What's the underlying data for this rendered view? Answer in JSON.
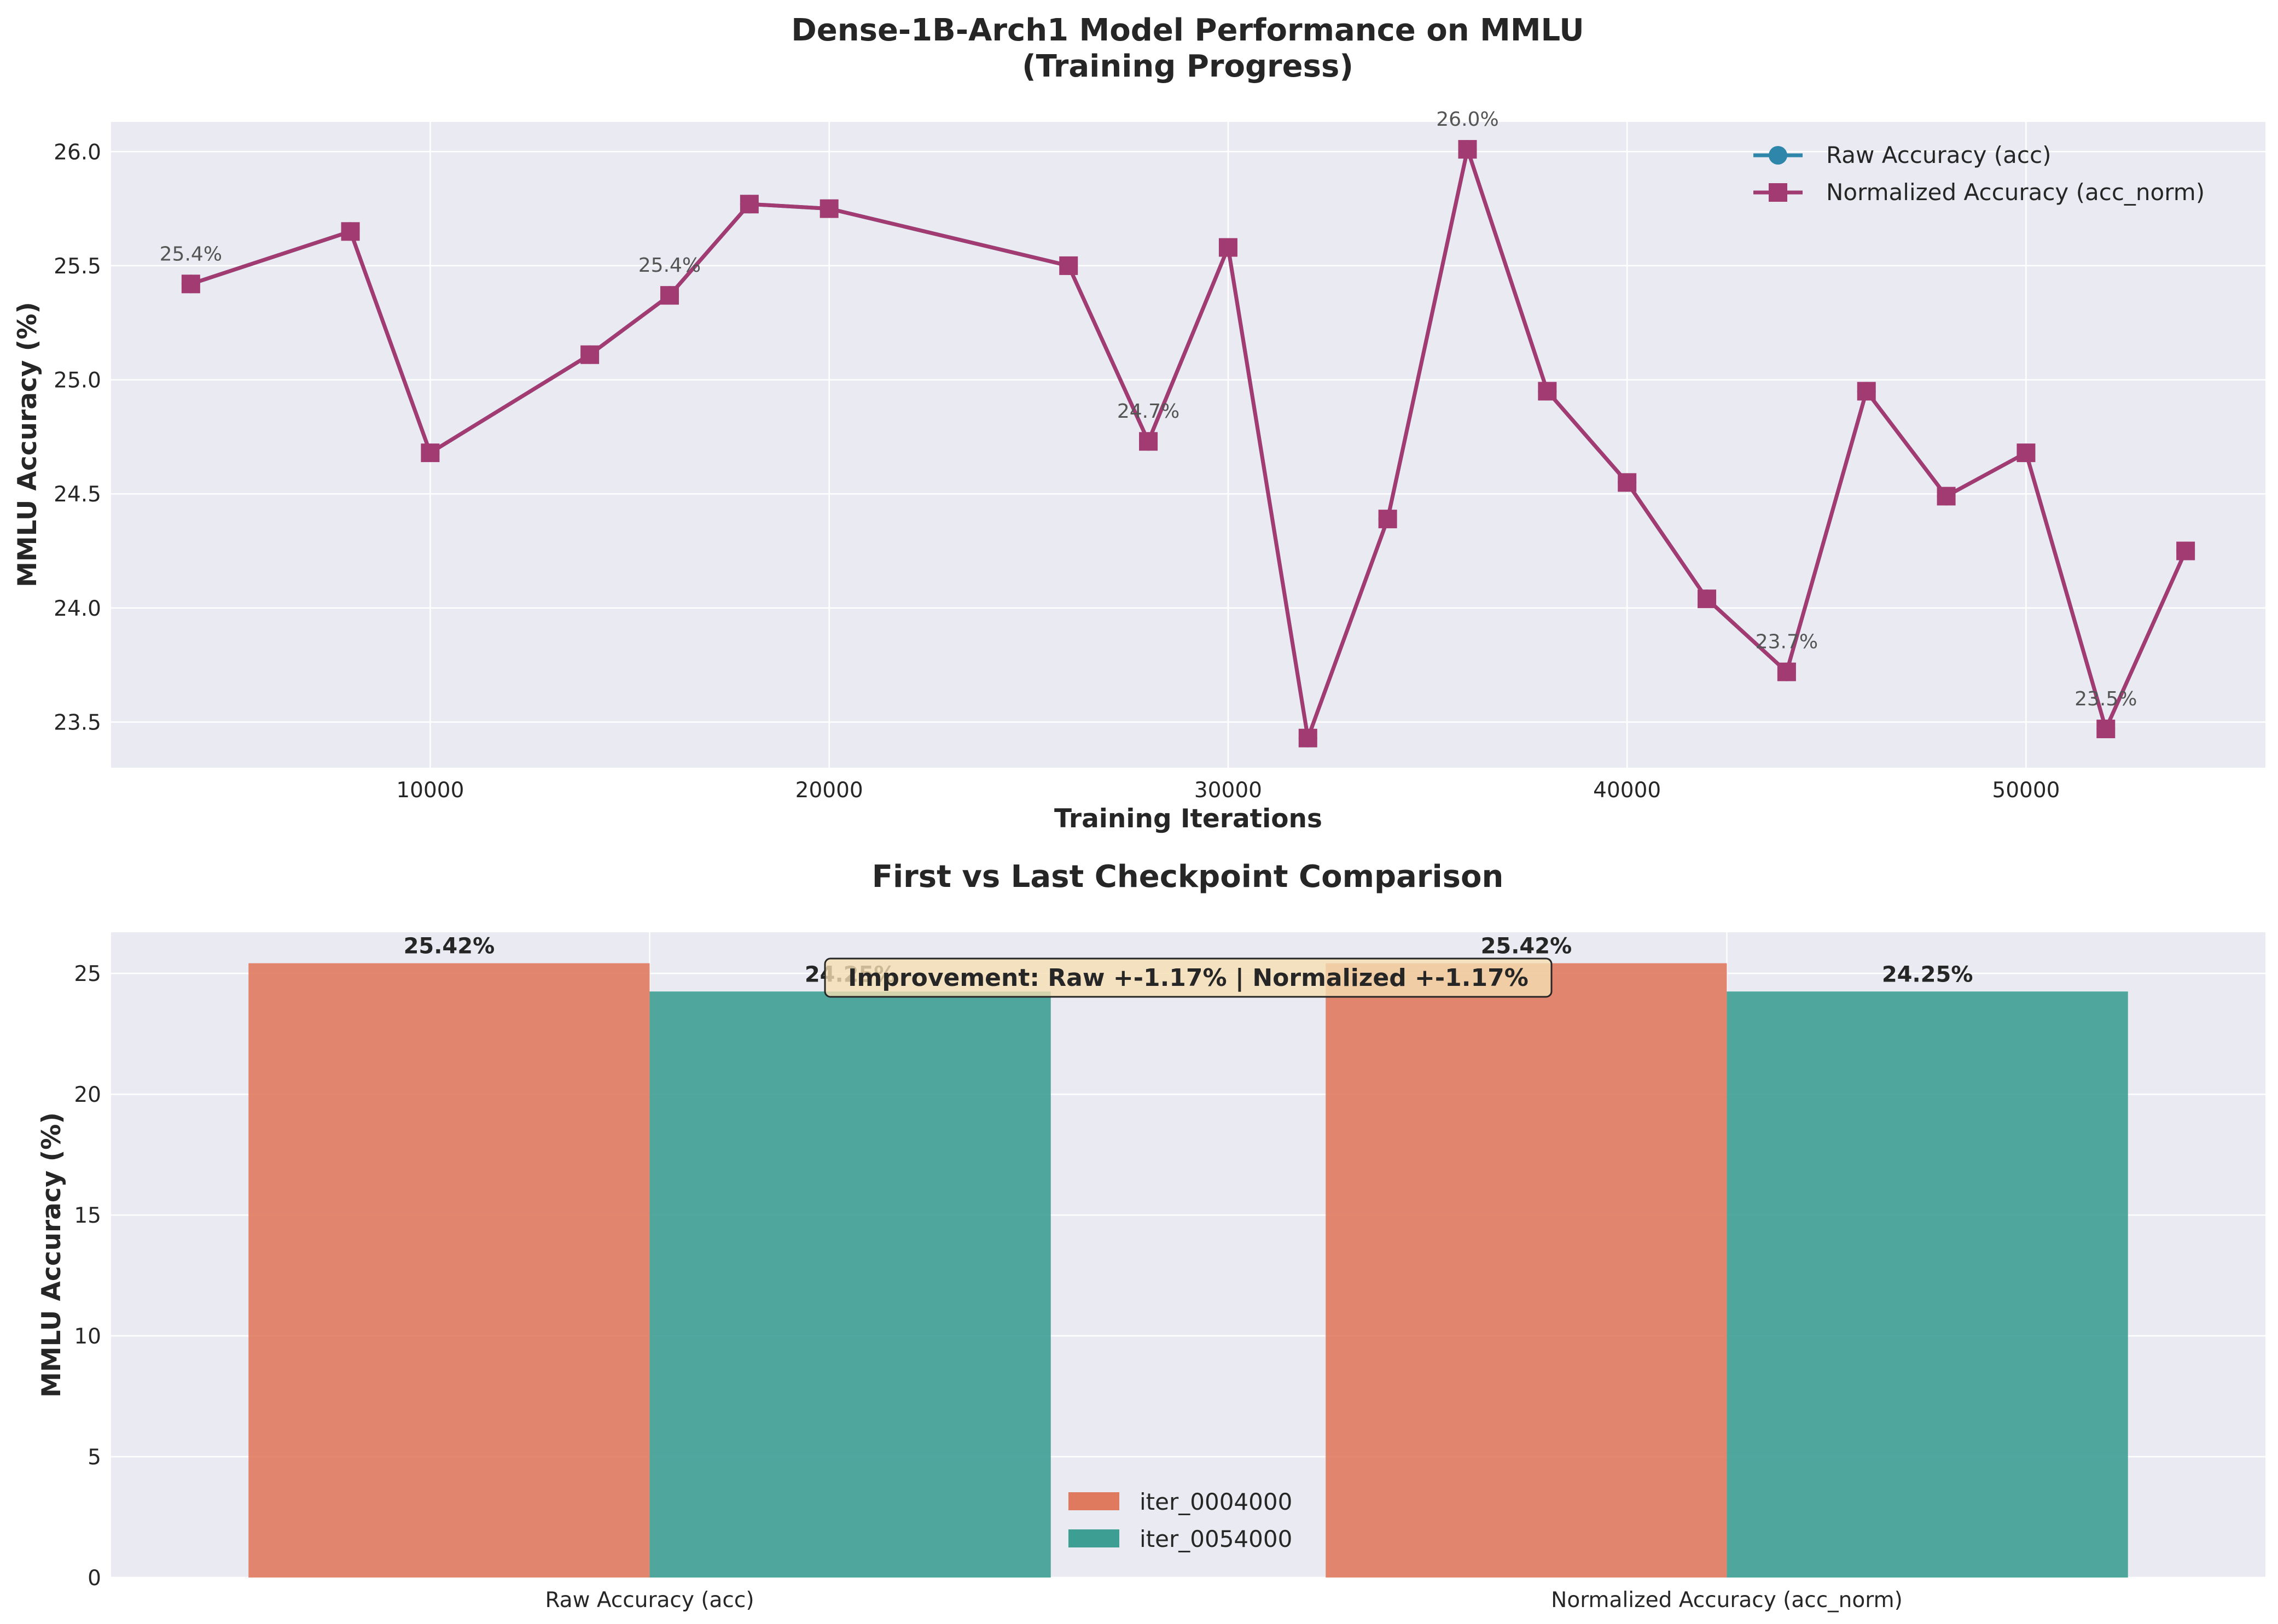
{
  "figure": {
    "title_line1": "Dense-1B-Arch1 Model Performance on MMLU",
    "title_line2": "(Training Progress)"
  },
  "chart_data": [
    {
      "type": "line",
      "xlabel": "Training Iterations",
      "ylabel": "MMLU Accuracy (%)",
      "xlim": [
        2000,
        56000
      ],
      "ylim": [
        23.3,
        26.13
      ],
      "x_ticks": [
        10000,
        20000,
        30000,
        40000,
        50000
      ],
      "y_ticks": [
        23.5,
        24.0,
        24.5,
        25.0,
        25.5,
        26.0
      ],
      "y_tick_labels": [
        "23.5",
        "24.0",
        "24.5",
        "25.0",
        "25.5",
        "26.0"
      ],
      "grid": true,
      "legend_position": "top-right",
      "x": [
        4000,
        8000,
        10000,
        14000,
        16000,
        18000,
        20000,
        26000,
        28000,
        30000,
        32000,
        34000,
        36000,
        38000,
        40000,
        42000,
        44000,
        46000,
        48000,
        50000,
        52000,
        54000
      ],
      "series": [
        {
          "name": "Raw Accuracy (acc)",
          "color": "#2e86ab",
          "marker": "circle",
          "values": [
            25.42,
            25.65,
            24.68,
            25.11,
            25.37,
            25.77,
            25.75,
            25.5,
            24.73,
            25.58,
            23.43,
            24.39,
            26.01,
            24.95,
            24.55,
            24.04,
            23.72,
            24.95,
            24.49,
            24.68,
            23.47,
            24.25
          ]
        },
        {
          "name": "Normalized Accuracy (acc_norm)",
          "color": "#a23b72",
          "marker": "square",
          "values": [
            25.42,
            25.65,
            24.68,
            25.11,
            25.37,
            25.77,
            25.75,
            25.5,
            24.73,
            25.58,
            23.43,
            24.39,
            26.01,
            24.95,
            24.55,
            24.04,
            23.72,
            24.95,
            24.49,
            24.68,
            23.47,
            24.25
          ]
        }
      ],
      "annotations": [
        {
          "x": 4000,
          "y": 25.42,
          "text": "25.4%"
        },
        {
          "x": 16000,
          "y": 25.37,
          "text": "25.4%"
        },
        {
          "x": 28000,
          "y": 24.73,
          "text": "24.7%"
        },
        {
          "x": 36000,
          "y": 26.01,
          "text": "26.0%"
        },
        {
          "x": 44000,
          "y": 23.72,
          "text": "23.7%"
        },
        {
          "x": 52000,
          "y": 23.47,
          "text": "23.5%"
        }
      ]
    },
    {
      "type": "bar",
      "title": "First vs Last Checkpoint Comparison",
      "xlabel": "",
      "ylabel": "MMLU Accuracy (%)",
      "ylim": [
        0,
        26.7
      ],
      "y_ticks": [
        0,
        5,
        10,
        15,
        20,
        25
      ],
      "y_tick_labels": [
        "0",
        "5",
        "10",
        "15",
        "20",
        "25"
      ],
      "grid": true,
      "legend_position": "bottom-center",
      "categories": [
        "Raw Accuracy (acc)",
        "Normalized Accuracy (acc_norm)"
      ],
      "series": [
        {
          "name": "iter_0004000",
          "color": "#e07a5f",
          "values": [
            25.42,
            25.42
          ],
          "labels": [
            "25.42%",
            "25.42%"
          ]
        },
        {
          "name": "iter_0054000",
          "color": "#3d9e94",
          "values": [
            24.25,
            24.25
          ],
          "labels": [
            "24.25%",
            "24.25%"
          ]
        }
      ],
      "annotation_box": "Improvement: Raw +-1.17% | Normalized +-1.17%"
    }
  ]
}
